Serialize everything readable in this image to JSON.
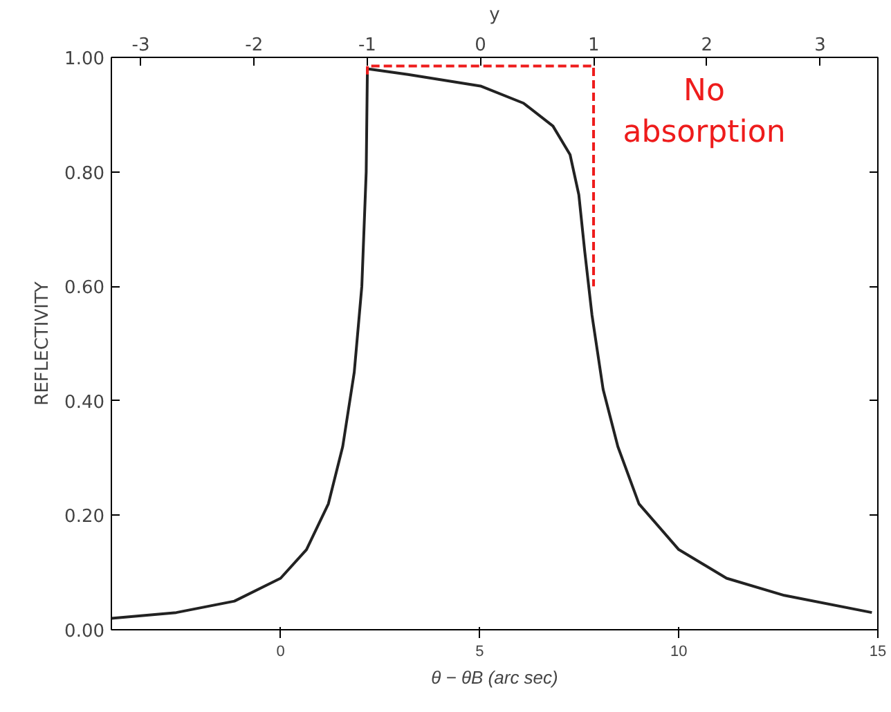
{
  "chart_data": {
    "type": "line",
    "xlabel": "θ − θB (arc sec)",
    "ylabel": "REFLECTIVITY",
    "x2label": "y",
    "xlim": [
      -4.25,
      15
    ],
    "xticks": [
      0,
      5,
      10,
      15
    ],
    "x2lim": [
      -3.26,
      3.51
    ],
    "x2ticks": [
      -3,
      -2,
      -1,
      0,
      1,
      2,
      3
    ],
    "ylim": [
      0,
      1.0
    ],
    "yticks": [
      {
        "value": 0,
        "label": "0.00"
      },
      {
        "value": 0.2,
        "label": "0.20"
      },
      {
        "value": 0.4,
        "label": "0.40"
      },
      {
        "value": 0.6,
        "label": "0.60"
      },
      {
        "value": 0.8,
        "label": "0.80"
      },
      {
        "value": 1.0,
        "label": "1.00"
      }
    ],
    "grid": false,
    "series": [
      {
        "color": "#222222",
        "line_style": "solid",
        "x": [
          -4.25,
          -2.62,
          -1.16,
          0,
          0.65,
          1.2,
          1.56,
          1.85,
          2.04,
          2.15,
          2.18,
          3.2,
          5.02,
          6.1,
          6.84,
          7.27,
          7.49,
          7.64,
          7.82,
          8.1,
          8.47,
          9.0,
          10,
          11.2,
          12.65,
          14.85
        ],
        "values": [
          0.02,
          0.03,
          0.05,
          0.09,
          0.14,
          0.22,
          0.32,
          0.45,
          0.6,
          0.8,
          0.98,
          0.97,
          0.95,
          0.92,
          0.88,
          0.83,
          0.76,
          0.66,
          0.55,
          0.42,
          0.32,
          0.22,
          0.14,
          0.09,
          0.06,
          0.03
        ]
      },
      {
        "name": "No absorption",
        "color": "#ee1c1c",
        "line_style": "dashed",
        "x": [
          2.18,
          2.18,
          7.86,
          7.86
        ],
        "values": [
          0.97,
          0.985,
          0.985,
          0.6
        ]
      }
    ]
  }
}
